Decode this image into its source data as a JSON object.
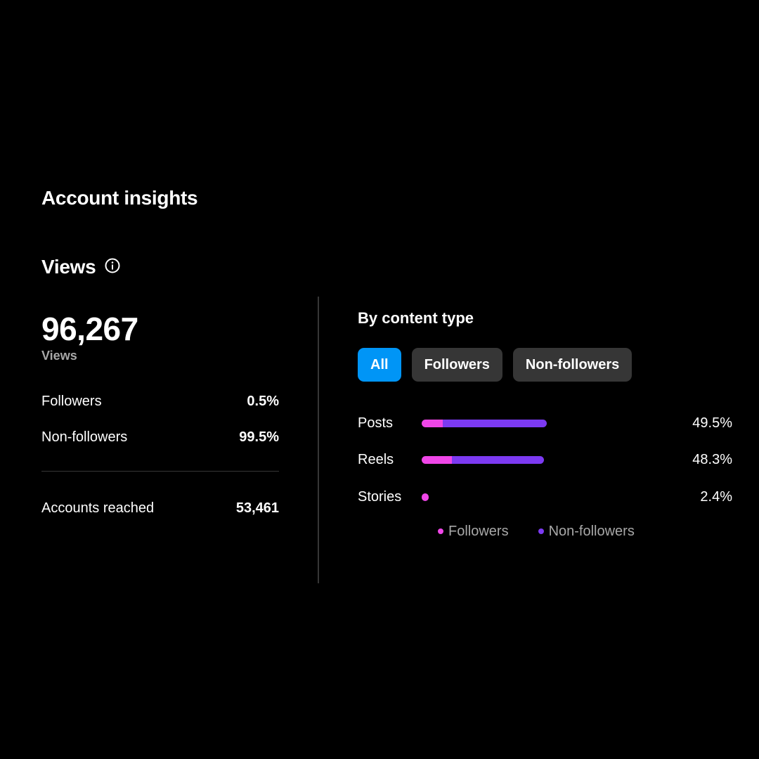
{
  "page": {
    "title": "Account insights"
  },
  "views": {
    "title": "Views",
    "total": "96,267",
    "total_caption": "Views",
    "rows": [
      {
        "label": "Followers",
        "value": "0.5%"
      },
      {
        "label": "Non-followers",
        "value": "99.5%"
      }
    ],
    "accounts_reached": {
      "label": "Accounts reached",
      "value": "53,461"
    }
  },
  "content_type": {
    "title": "By content type",
    "filters": [
      {
        "label": "All",
        "active": true
      },
      {
        "label": "Followers",
        "active": false
      },
      {
        "label": "Non-followers",
        "active": false
      }
    ],
    "rows": [
      {
        "label": "Posts",
        "value": "49.5%",
        "total_pct": 49.5,
        "followers_share": 0.17
      },
      {
        "label": "Reels",
        "value": "48.3%",
        "total_pct": 48.3,
        "followers_share": 0.25
      },
      {
        "label": "Stories",
        "value": "2.4%",
        "total_pct": 2.4,
        "followers_share": 1.0
      }
    ],
    "legend": [
      {
        "label": "Followers",
        "color": "#f046e8"
      },
      {
        "label": "Non-followers",
        "color": "#7c3af2"
      }
    ]
  },
  "colors": {
    "accent": "#0095f6",
    "followers": "#f046e8",
    "non_followers": "#7c3af2",
    "chip_bg": "#363636",
    "muted_text": "#a8a8a8"
  },
  "icons": {
    "info": "info-circle-icon"
  }
}
